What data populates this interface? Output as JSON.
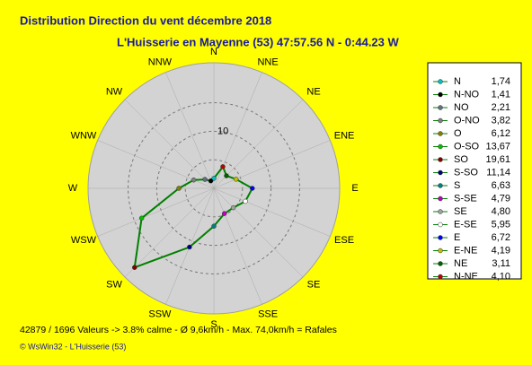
{
  "chart_data": {
    "type": "windrose",
    "title": "Distribution Direction du vent   décembre 2018",
    "subtitle": "L'Huisserie en Mayenne (53) 47:57.56 N - 0:44.23 W",
    "directions": [
      "N",
      "NNE",
      "NE",
      "ENE",
      "E",
      "ESE",
      "SE",
      "SSE",
      "S",
      "SSW",
      "SW",
      "WSW",
      "W",
      "WNW",
      "NW",
      "NNW"
    ],
    "legend_header": "%",
    "line_color": "#008000",
    "categories": [
      "N",
      "N-NO",
      "NO",
      "O-NO",
      "O",
      "O-SO",
      "SO",
      "S-SO",
      "S",
      "S-SE",
      "SE",
      "E-SE",
      "E",
      "E-NE",
      "NE",
      "N-NE"
    ],
    "values": [
      1.74,
      1.41,
      2.21,
      3.82,
      6.12,
      13.67,
      19.61,
      11.14,
      6.63,
      4.79,
      4.8,
      5.95,
      6.72,
      4.19,
      3.11,
      4.1
    ],
    "value_labels": [
      "1,74",
      "1,41",
      "2,21",
      "3,82",
      "6,12",
      "13,67",
      "19,61",
      "11,14",
      "6,63",
      "4,79",
      "4,80",
      "5,95",
      "6,72",
      "4,19",
      "3,11",
      "4,10"
    ],
    "colors": [
      "#00c0c0",
      "#000000",
      "#607080",
      "#808080",
      "#808000",
      "#00c000",
      "#800000",
      "#000080",
      "#008080",
      "#c000c0",
      "#a0a0a0",
      "#ffffff",
      "#0000ff",
      "#c0c000",
      "#006000",
      "#c00000"
    ],
    "rlim": [
      0,
      22
    ],
    "rticks": [
      10
    ],
    "rgrid": [
      5,
      10,
      15
    ],
    "footer": "42879 / 1696 Valeurs  -> 3.8% calme   -   Ø 9,6km/h   -   Max. 74,0km/h = Rafales",
    "copyright": "© WsWin32  -  L'Huisserie (53)"
  }
}
